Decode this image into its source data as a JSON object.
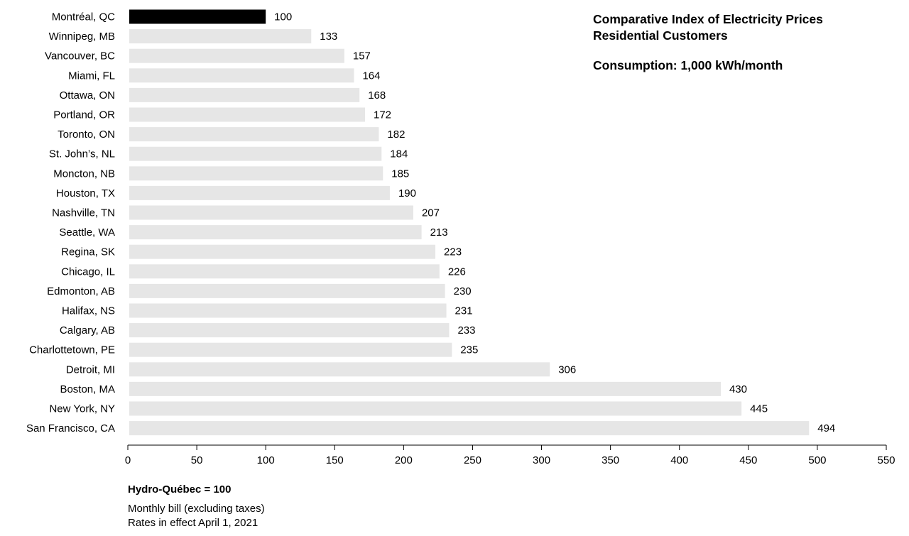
{
  "chart_data": {
    "type": "bar",
    "orientation": "horizontal",
    "title": "Comparative Index of Electricity Prices",
    "title_line2": "Residential Customers",
    "subtitle": "Consumption: 1,000 kWh/month",
    "categories": [
      "Montréal, QC",
      "Winnipeg, MB",
      "Vancouver, BC",
      "Miami, FL",
      "Ottawa, ON",
      "Portland, OR",
      "Toronto, ON",
      "St. John’s, NL",
      "Moncton, NB",
      "Houston, TX",
      "Nashville, TN",
      "Seattle, WA",
      "Regina, SK",
      "Chicago, IL",
      "Edmonton, AB",
      "Halifax, NS",
      "Calgary, AB",
      "Charlottetown, PE",
      "Detroit, MI",
      "Boston, MA",
      "New York, NY",
      "San Francisco, CA"
    ],
    "values": [
      100,
      133,
      157,
      164,
      168,
      172,
      182,
      184,
      185,
      190,
      207,
      213,
      223,
      226,
      230,
      231,
      233,
      235,
      306,
      430,
      445,
      494
    ],
    "highlight_index": 0,
    "colors": {
      "highlight": "#000000",
      "bar": "#e6e6e6",
      "axis": "#000000"
    },
    "xlim": [
      0,
      550
    ],
    "xticks": [
      0,
      50,
      100,
      150,
      200,
      250,
      300,
      350,
      400,
      450,
      500,
      550
    ],
    "grid": false,
    "xlabel": "",
    "ylabel": ""
  },
  "footer": {
    "reference": "Hydro-Québec = 100",
    "note_line1": "Monthly bill (excluding taxes)",
    "note_line2": "Rates in effect April 1, 2021"
  }
}
